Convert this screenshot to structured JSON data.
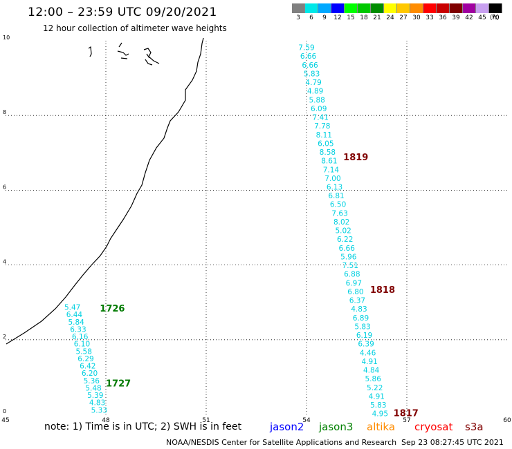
{
  "header": {
    "title": "12:00 – 23:59 UTC 09/20/2021",
    "subtitle": "12 hour collection of altimeter wave heights"
  },
  "legend": {
    "unit": "(ft)",
    "bins": [
      {
        "label": "3",
        "color": "#808080"
      },
      {
        "label": "6",
        "color": "#00e8e8"
      },
      {
        "label": "9",
        "color": "#00a8ff"
      },
      {
        "label": "12",
        "color": "#0000ff"
      },
      {
        "label": "15",
        "color": "#00ff00"
      },
      {
        "label": "18",
        "color": "#00c800"
      },
      {
        "label": "21",
        "color": "#008c00"
      },
      {
        "label": "24",
        "color": "#ffff00"
      },
      {
        "label": "27",
        "color": "#ffc800"
      },
      {
        "label": "30",
        "color": "#ff8c00"
      },
      {
        "label": "33",
        "color": "#ff0000"
      },
      {
        "label": "36",
        "color": "#c80000"
      },
      {
        "label": "39",
        "color": "#7f0000"
      },
      {
        "label": "42",
        "color": "#a000a0"
      },
      {
        "label": "45",
        "color": "#c8a0f0"
      },
      {
        "label": "70",
        "color": "#000000"
      }
    ]
  },
  "map": {
    "x_ticks": [
      "45",
      "48",
      "51",
      "54",
      "57",
      "60"
    ],
    "y_ticks": [
      "0",
      "2",
      "4",
      "6",
      "8",
      "10"
    ],
    "xlim": [
      45,
      60
    ],
    "ylim": [
      0,
      10
    ]
  },
  "colors": {
    "swh_text": "#00d0e0",
    "jason3": "#007a00",
    "s3a": "#800000",
    "coastline": "#000000",
    "grid": "#000000"
  },
  "tracks": [
    {
      "name": "jason3",
      "color": "#00d0e0",
      "values": [
        "5.47",
        "6.44",
        "5.84",
        "6.33",
        "6.16",
        "6.10",
        "5.58",
        "6.29",
        "6.42",
        "6.20",
        "5.36",
        "5.48",
        "5.39",
        "4.83",
        "5.33"
      ],
      "lon_start": 47.0,
      "lat_start": 2.8,
      "lon_end": 47.8,
      "lat_end": 0.05,
      "labels": [
        {
          "text": "1726",
          "lon": 47.82,
          "lat": 2.75,
          "color": "#007a00"
        },
        {
          "text": "1727",
          "lon": 48.0,
          "lat": 0.75,
          "color": "#007a00"
        }
      ]
    },
    {
      "name": "s3a",
      "color": "#00d0e0",
      "values": [
        "7.59",
        "6.66",
        "6.66",
        "5.83",
        "4.79",
        "4.89",
        "5.88",
        "6.09",
        "7.41",
        "7.78",
        "8.11",
        "6.05",
        "8.58",
        "8.61",
        "7.14",
        "7.00",
        "6.13",
        "6.81",
        "6.50",
        "7.63",
        "8.02",
        "5.02",
        "6.22",
        "6.66",
        "5.96",
        "7.51",
        "6.88",
        "6.97",
        "6.80",
        "6.37",
        "4.83",
        "6.89",
        "5.83",
        "6.19",
        "6.39",
        "4.46",
        "4.91",
        "4.84",
        "5.86",
        "5.22",
        "4.91",
        "5.83",
        "4.95"
      ],
      "lon_start": 54.0,
      "lat_start": 9.75,
      "lon_end": 56.2,
      "lat_end": -0.05,
      "labels": [
        {
          "text": "1819",
          "lon": 55.1,
          "lat": 6.8,
          "color": "#800000"
        },
        {
          "text": "1818",
          "lon": 55.9,
          "lat": 3.25,
          "color": "#800000"
        },
        {
          "text": "1817",
          "lon": 56.6,
          "lat": -0.05,
          "color": "#800000"
        }
      ]
    }
  ],
  "footer": {
    "note": "note: 1) Time is in UTC; 2) SWH is in feet",
    "satellites": [
      {
        "name": "jason2",
        "color": "#0000ff"
      },
      {
        "name": "jason3",
        "color": "#008000"
      },
      {
        "name": "altika",
        "color": "#ff8c00"
      },
      {
        "name": "cryosat",
        "color": "#ff0000"
      },
      {
        "name": "s3a",
        "color": "#800000"
      }
    ],
    "credit": "NOAA/NESDIS Center for Satellite Applications and Research",
    "timestamp": "Sep 23 08:27:45 UTC 2021"
  }
}
